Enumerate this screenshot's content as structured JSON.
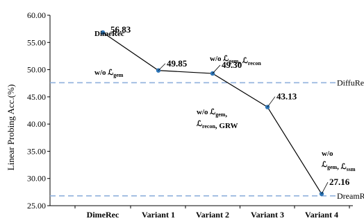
{
  "chart_data": {
    "type": "line",
    "categories": [
      "DimeRec",
      "Variant 1",
      "Variant 2",
      "Variant 3",
      "Variant 4"
    ],
    "values": [
      56.83,
      49.85,
      49.3,
      43.13,
      27.16
    ],
    "value_labels": [
      "56.83",
      "49.85",
      "49.30",
      "43.13",
      "27.16"
    ],
    "ylabel": "Linear Probing Acc.(%)",
    "ylim": [
      25,
      60
    ],
    "yticks": [
      25,
      30,
      35,
      40,
      45,
      50,
      55,
      60
    ],
    "ytick_labels": [
      "25.00",
      "30.00",
      "35.00",
      "40.00",
      "45.00",
      "50.00",
      "55.00",
      "60.00"
    ],
    "grid": false,
    "line_color": "#000000",
    "marker_color": "#2e75b6",
    "reference_lines": [
      {
        "name": "DiffuRec",
        "value": 47.6,
        "color": "#8fb0dc"
      },
      {
        "name": "DreamRec",
        "value": 26.8,
        "color": "#8fb0dc"
      }
    ],
    "annotations": [
      {
        "lines": [
          [
            {
              "t": "DimeRec"
            }
          ]
        ]
      },
      {
        "lines": [
          [
            {
              "t": "w/o "
            },
            {
              "t": "ℒ"
            },
            {
              "t": "gem",
              "sub": true
            }
          ]
        ]
      },
      {
        "lines": [
          [
            {
              "t": "w/o  "
            },
            {
              "t": "ℒ"
            },
            {
              "t": "gem",
              "sub": true
            },
            {
              "t": ", "
            },
            {
              "t": "ℒ"
            },
            {
              "t": "recon",
              "sub": true
            }
          ]
        ]
      },
      {
        "lines": [
          [
            {
              "t": "w/o "
            },
            {
              "t": "ℒ"
            },
            {
              "t": "gem",
              "sub": true
            },
            {
              "t": ","
            }
          ],
          [
            {
              "t": "ℒ"
            },
            {
              "t": "recon",
              "sub": true
            },
            {
              "t": ", GRW"
            }
          ]
        ]
      },
      {
        "lines": [
          [
            {
              "t": "w/o"
            }
          ],
          [
            {
              "t": "ℒ"
            },
            {
              "t": "gem",
              "sub": true
            },
            {
              "t": ", "
            },
            {
              "t": "ℒ"
            },
            {
              "t": "ssm",
              "sub": true
            }
          ]
        ]
      }
    ]
  }
}
